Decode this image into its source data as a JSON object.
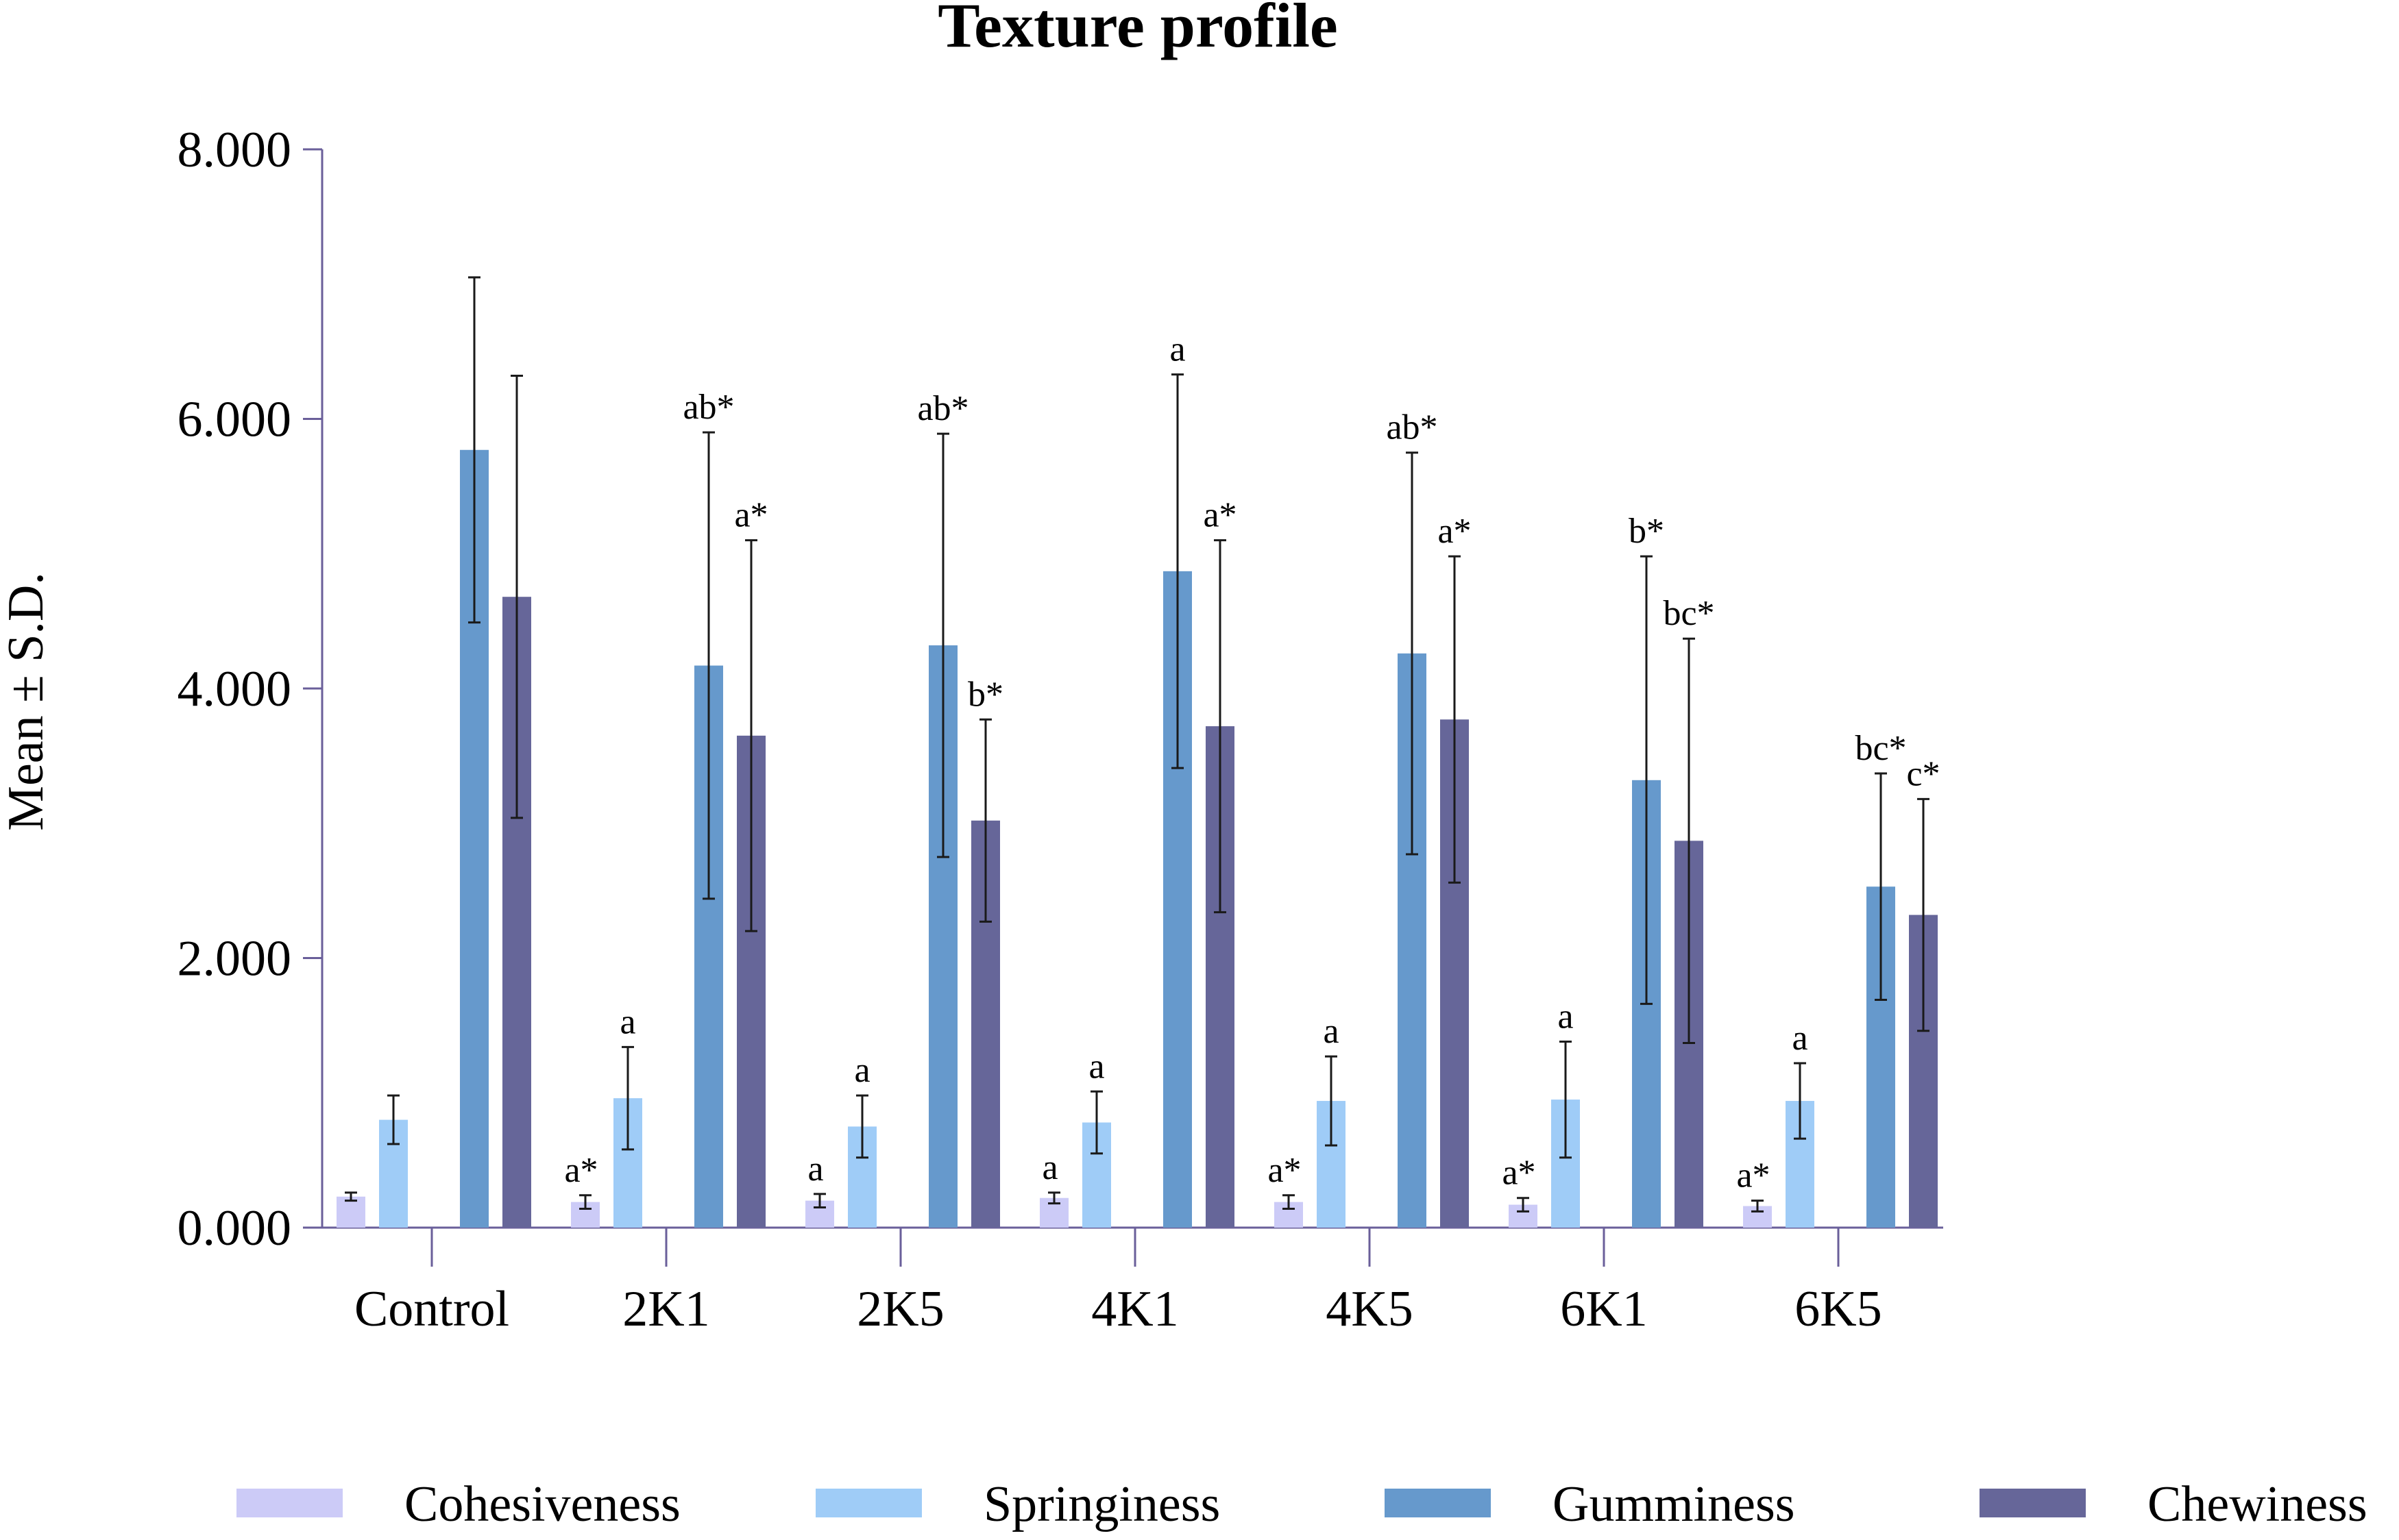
{
  "chart_data": {
    "type": "bar",
    "title": "Texture profile",
    "xlabel": "",
    "ylabel": "Mean ± S.D.",
    "ylim": [
      0,
      8
    ],
    "yticks": [
      "0.000",
      "2.000",
      "4.000",
      "6.000",
      "8.000"
    ],
    "ytick_values": [
      0,
      2,
      4,
      6,
      8
    ],
    "grid": false,
    "legend_position": "bottom",
    "categories": [
      "Control",
      "2K1",
      "2K5",
      "4K1",
      "4K5",
      "6K1",
      "6K5"
    ],
    "series": [
      {
        "name": "Cohesiveness",
        "color": "#cccbf7",
        "values": [
          0.23,
          0.19,
          0.2,
          0.22,
          0.19,
          0.17,
          0.16
        ],
        "errors": [
          0.03,
          0.05,
          0.05,
          0.04,
          0.05,
          0.05,
          0.04
        ],
        "labels": [
          "",
          "a*",
          "a",
          "a",
          "a*",
          "a*",
          "a*"
        ]
      },
      {
        "name": "Springiness",
        "color": "#9fccf7",
        "values": [
          0.8,
          0.96,
          0.75,
          0.78,
          0.94,
          0.95,
          0.94
        ],
        "errors": [
          0.18,
          0.38,
          0.23,
          0.23,
          0.33,
          0.43,
          0.28
        ],
        "labels": [
          "",
          "a",
          "a",
          "a",
          "a",
          "a",
          "a"
        ]
      },
      {
        "name": "Gumminess",
        "color": "#6699cc",
        "values": [
          5.77,
          4.17,
          4.32,
          4.87,
          4.26,
          3.32,
          2.53
        ],
        "errors": [
          1.28,
          1.73,
          1.57,
          1.46,
          1.49,
          1.66,
          0.84
        ],
        "labels": [
          "",
          "ab*",
          "ab*",
          "a",
          "ab*",
          "b*",
          "bc*"
        ]
      },
      {
        "name": "Chewiness",
        "color": "#666699",
        "values": [
          4.68,
          3.65,
          3.02,
          3.72,
          3.77,
          2.87,
          2.32
        ],
        "errors": [
          1.64,
          1.45,
          0.75,
          1.38,
          1.21,
          1.5,
          0.86
        ],
        "labels": [
          "",
          "a*",
          "b*",
          "a*",
          "a*",
          "bc*",
          "c*"
        ]
      }
    ]
  }
}
